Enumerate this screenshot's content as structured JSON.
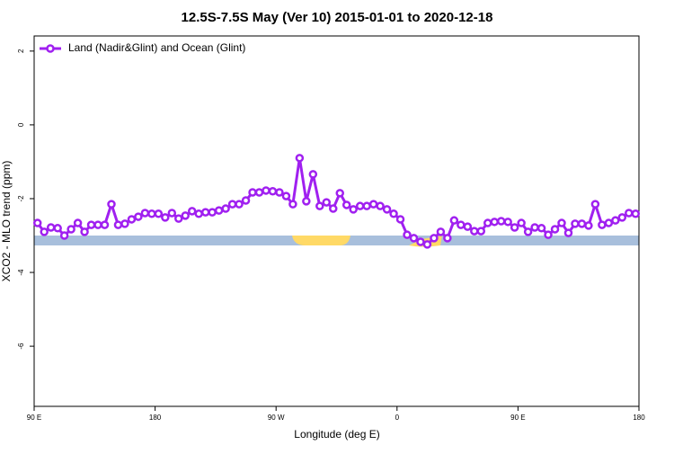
{
  "chart_data": {
    "type": "line",
    "title": "12.5S-7.5S May (Ver 10)   2015-01-01 to 2020-12-18",
    "xlabel": "Longitude (deg E)",
    "ylabel": "XCO2 - MLO trend (ppm)",
    "xlim": [
      90,
      540
    ],
    "ylim": [
      -7.63,
      2.41
    ],
    "xticks": [
      {
        "value": 90,
        "label": "90 E"
      },
      180,
      {
        "value": 270,
        "label": "90 W"
      },
      {
        "value": 360,
        "label": "0"
      },
      {
        "value": 450,
        "label": "90 E"
      },
      {
        "value": 540,
        "label": "180"
      }
    ],
    "yticks": [
      2,
      0,
      -2,
      -4,
      -6
    ],
    "legend": "top-left",
    "grid": false,
    "x": [
      92.5,
      97.5,
      102.5,
      107.5,
      112.5,
      117.5,
      122.5,
      127.5,
      132.5,
      137.5,
      142.5,
      147.5,
      152.5,
      157.5,
      162.5,
      167.5,
      172.5,
      177.5,
      182.5,
      187.5,
      192.5,
      197.5,
      202.5,
      207.5,
      212.5,
      217.5,
      222.5,
      227.5,
      232.5,
      237.5,
      242.5,
      247.5,
      252.5,
      257.5,
      262.5,
      267.5,
      272.5,
      277.5,
      282.5,
      287.5,
      292.5,
      297.5,
      302.5,
      307.5,
      312.5,
      317.5,
      322.5,
      327.5,
      332.5,
      337.5,
      342.5,
      347.5,
      352.5,
      357.5,
      362.5,
      367.5,
      372.5,
      377.5,
      382.5,
      387.5,
      392.5,
      397.5,
      402.5,
      407.5,
      412.5,
      417.5,
      422.5,
      427.5,
      432.5,
      437.5,
      442.5,
      447.5,
      452.5,
      457.5,
      462.5,
      467.5,
      472.5,
      477.5,
      482.5,
      487.5,
      492.5,
      497.5,
      502.5,
      507.5,
      512.5,
      517.5,
      522.5,
      527.5,
      532.5,
      537.5
    ],
    "series": [
      {
        "name": "Land (Nadir&Glint) and Ocean (Glint)",
        "color": "#a020f0",
        "values": [
          -2.66,
          -2.9,
          -2.78,
          -2.8,
          -3.0,
          -2.83,
          -2.66,
          -2.9,
          -2.71,
          -2.71,
          -2.71,
          -2.15,
          -2.71,
          -2.68,
          -2.56,
          -2.49,
          -2.39,
          -2.41,
          -2.41,
          -2.51,
          -2.39,
          -2.54,
          -2.46,
          -2.34,
          -2.41,
          -2.37,
          -2.37,
          -2.32,
          -2.27,
          -2.15,
          -2.15,
          -2.05,
          -1.83,
          -1.83,
          -1.78,
          -1.8,
          -1.83,
          -1.93,
          -2.15,
          -0.9,
          -2.07,
          -1.34,
          -2.2,
          -2.1,
          -2.27,
          -1.85,
          -2.17,
          -2.29,
          -2.2,
          -2.2,
          -2.15,
          -2.2,
          -2.29,
          -2.41,
          -2.56,
          -2.98,
          -3.07,
          -3.17,
          -3.24,
          -3.07,
          -2.9,
          -3.07,
          -2.59,
          -2.71,
          -2.76,
          -2.88,
          -2.88,
          -2.66,
          -2.63,
          -2.61,
          -2.63,
          -2.78,
          -2.66,
          -2.9,
          -2.78,
          -2.8,
          -2.98,
          -2.83,
          -2.66,
          -2.93,
          -2.68,
          -2.68,
          -2.73,
          -2.15,
          -2.71,
          -2.66,
          -2.59,
          -2.51,
          -2.39,
          -2.41
        ]
      }
    ]
  }
}
